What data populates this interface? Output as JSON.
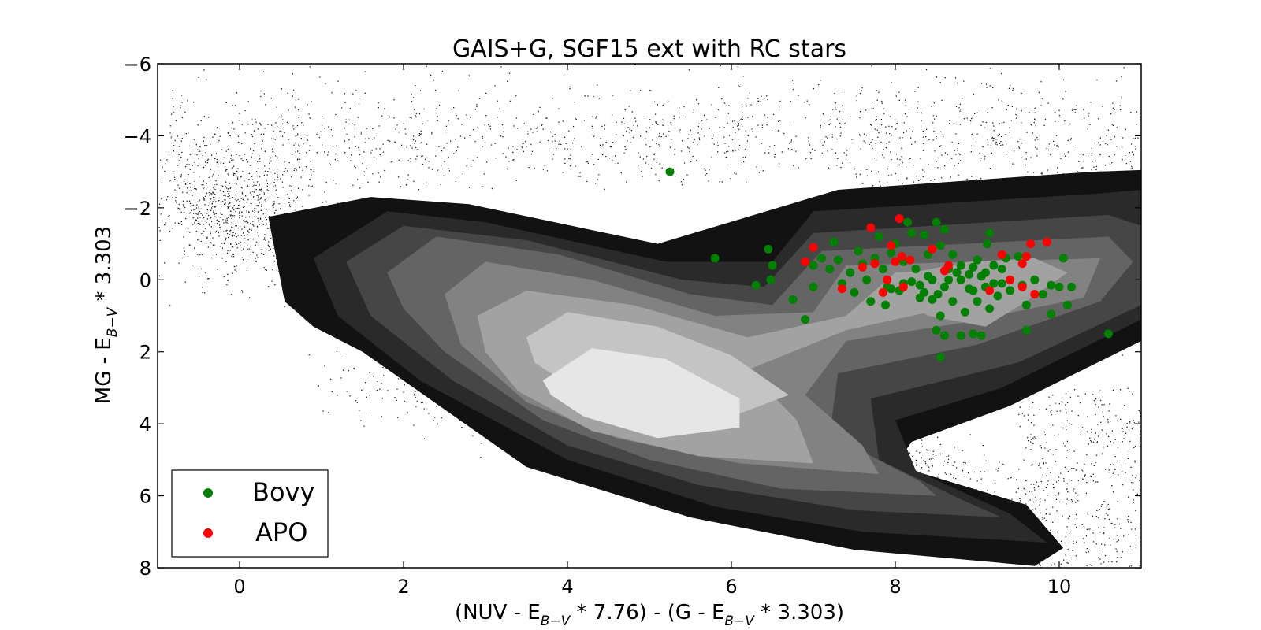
{
  "chart_data": {
    "type": "scatter",
    "title": "GAIS+G, SGF15 ext with RC stars",
    "xlabel": {
      "parts": [
        "(NUV - E",
        "B−V",
        " * 7.76) - (G - E",
        "B−V",
        " * 3.303)"
      ]
    },
    "ylabel": {
      "parts": [
        "MG - E",
        "B−V",
        " * 3.303"
      ]
    },
    "xlim": [
      -1,
      11
    ],
    "ylim": [
      8,
      -6
    ],
    "y_inverted": true,
    "x_ticks": [
      "0",
      "2",
      "4",
      "6",
      "8",
      "10"
    ],
    "y_ticks": [
      "−6",
      "−4",
      "−2",
      "0",
      "2",
      "4",
      "6",
      "8"
    ],
    "grid": false,
    "legend_position": "bottom-left",
    "background_points": {
      "description_color": "#000000",
      "marker_color": "#333333",
      "count": 6000,
      "color": "#222222"
    },
    "density_contours": {
      "levels": [
        1,
        2,
        3,
        4,
        5,
        6,
        7,
        8
      ],
      "fill_colors": [
        "#121212",
        "#2a2a2a",
        "#464646",
        "#646464",
        "#828282",
        "#a2a2a2",
        "#c4c4c4",
        "#e6e6e6"
      ]
    },
    "series": [
      {
        "name": "Bovy",
        "color": "#008000",
        "points": [
          [
            5.25,
            -3.0
          ],
          [
            5.8,
            -0.6
          ],
          [
            6.3,
            0.15
          ],
          [
            6.45,
            -0.85
          ],
          [
            6.5,
            -0.4
          ],
          [
            6.48,
            0.0
          ],
          [
            6.75,
            0.55
          ],
          [
            6.9,
            1.1
          ],
          [
            7.0,
            -0.4
          ],
          [
            7.1,
            -0.6
          ],
          [
            7.2,
            -0.3
          ],
          [
            7.0,
            0.2
          ],
          [
            7.25,
            -1.05
          ],
          [
            7.3,
            -0.55
          ],
          [
            7.35,
            0.1
          ],
          [
            7.45,
            -0.2
          ],
          [
            7.5,
            0.35
          ],
          [
            7.55,
            -0.8
          ],
          [
            7.6,
            -0.45
          ],
          [
            7.65,
            0.0
          ],
          [
            7.7,
            0.6
          ],
          [
            7.75,
            -0.6
          ],
          [
            7.8,
            -1.2
          ],
          [
            7.85,
            -0.3
          ],
          [
            7.9,
            0.2
          ],
          [
            7.95,
            -0.75
          ],
          [
            7.88,
            0.7
          ],
          [
            8.0,
            -1.0
          ],
          [
            8.05,
            0.3
          ],
          [
            8.1,
            -0.5
          ],
          [
            8.15,
            -1.6
          ],
          [
            8.2,
            -1.3
          ],
          [
            8.2,
            0.05
          ],
          [
            8.25,
            -0.3
          ],
          [
            8.3,
            0.5
          ],
          [
            8.35,
            -1.25
          ],
          [
            8.4,
            -0.7
          ],
          [
            8.45,
            0.0
          ],
          [
            8.5,
            -1.6
          ],
          [
            8.52,
            0.4
          ],
          [
            8.55,
            -0.95
          ],
          [
            8.6,
            -1.4
          ],
          [
            8.6,
            0.2
          ],
          [
            8.65,
            -0.3
          ],
          [
            8.7,
            0.6
          ],
          [
            8.7,
            -0.7
          ],
          [
            8.8,
            0.0
          ],
          [
            8.8,
            -0.4
          ],
          [
            8.85,
            0.9
          ],
          [
            8.9,
            -0.15
          ],
          [
            8.95,
            0.3
          ],
          [
            9.0,
            -0.55
          ],
          [
            9.0,
            0.6
          ],
          [
            9.05,
            -0.1
          ],
          [
            9.1,
            0.2
          ],
          [
            9.12,
            -1.0
          ],
          [
            9.15,
            -1.3
          ],
          [
            9.15,
            0.8
          ],
          [
            9.2,
            -0.4
          ],
          [
            9.25,
            0.45
          ],
          [
            9.3,
            0.1
          ],
          [
            9.35,
            -0.6
          ],
          [
            9.4,
            0.3
          ],
          [
            9.5,
            -0.65
          ],
          [
            9.55,
            0.15
          ],
          [
            9.6,
            0.7
          ],
          [
            9.7,
            0.0
          ],
          [
            9.8,
            0.4
          ],
          [
            9.9,
            0.15
          ],
          [
            10.0,
            0.2
          ],
          [
            10.05,
            -0.6
          ],
          [
            10.1,
            0.7
          ],
          [
            10.15,
            0.2
          ],
          [
            8.5,
            1.4
          ],
          [
            8.55,
            2.15
          ],
          [
            8.6,
            1.55
          ],
          [
            8.8,
            1.55
          ],
          [
            8.95,
            1.5
          ],
          [
            9.05,
            1.55
          ],
          [
            9.6,
            1.4
          ],
          [
            9.9,
            0.95
          ],
          [
            10.6,
            1.5
          ],
          [
            8.45,
            0.55
          ],
          [
            8.55,
            1.0
          ],
          [
            8.35,
            0.35
          ],
          [
            8.65,
            0.0
          ],
          [
            8.9,
            0.25
          ],
          [
            9.1,
            -0.2
          ],
          [
            9.2,
            0.1
          ],
          [
            8.75,
            -0.2
          ],
          [
            8.4,
            -0.1
          ],
          [
            8.3,
            0.15
          ],
          [
            8.1,
            0.1
          ],
          [
            7.95,
            0.25
          ],
          [
            8.95,
            -0.35
          ],
          [
            9.3,
            -0.3
          ]
        ]
      },
      {
        "name": "APO",
        "color": "#ff0000",
        "points": [
          [
            6.9,
            -0.5
          ],
          [
            7.0,
            -0.9
          ],
          [
            7.35,
            0.25
          ],
          [
            7.7,
            -1.45
          ],
          [
            7.75,
            -0.45
          ],
          [
            7.6,
            -0.35
          ],
          [
            7.85,
            0.35
          ],
          [
            7.9,
            0.0
          ],
          [
            7.95,
            -0.95
          ],
          [
            8.0,
            -0.5
          ],
          [
            8.05,
            -1.7
          ],
          [
            8.08,
            -0.65
          ],
          [
            8.1,
            0.2
          ],
          [
            8.18,
            -0.55
          ],
          [
            8.45,
            -0.85
          ],
          [
            8.6,
            -0.25
          ],
          [
            8.65,
            -0.4
          ],
          [
            9.15,
            0.3
          ],
          [
            9.3,
            -0.7
          ],
          [
            9.4,
            0.0
          ],
          [
            9.55,
            0.2
          ],
          [
            9.6,
            -0.65
          ],
          [
            9.65,
            -1.0
          ],
          [
            9.7,
            0.4
          ],
          [
            9.85,
            -1.05
          ],
          [
            9.55,
            -0.45
          ]
        ]
      }
    ]
  }
}
